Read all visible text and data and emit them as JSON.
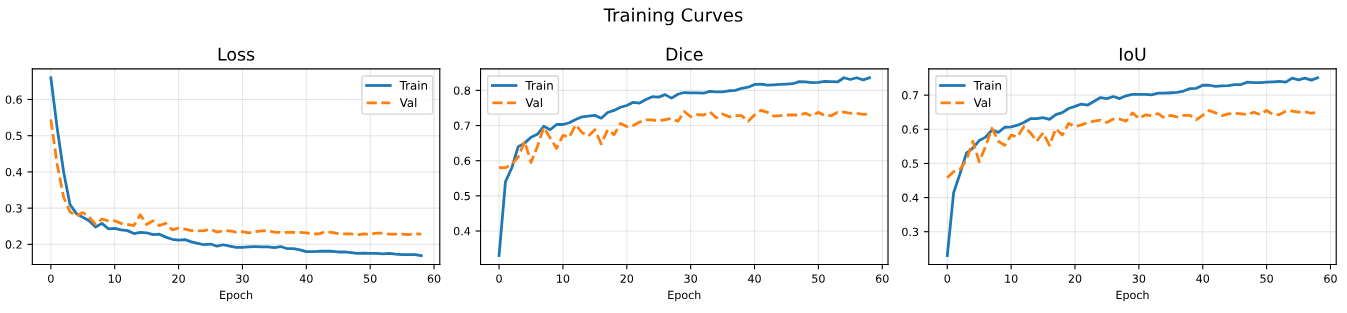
{
  "chart_data": [
    {
      "type": "line",
      "title": "Loss",
      "xlabel": "Epoch",
      "legend": "top right",
      "grid": true,
      "annotations": [
        "Training Curves"
      ],
      "x": [
        0,
        1,
        2,
        3,
        4,
        5,
        6,
        7,
        8,
        9,
        10,
        11,
        12,
        13,
        14,
        15,
        16,
        17,
        18,
        19,
        20,
        21,
        22,
        23,
        24,
        25,
        26,
        27,
        28,
        29,
        30,
        31,
        32,
        33,
        34,
        35,
        36,
        37,
        38,
        39,
        40,
        41,
        42,
        43,
        44,
        45,
        46,
        47,
        48,
        49,
        50,
        51,
        52,
        53,
        54,
        55,
        56,
        57,
        58
      ],
      "xlim": [
        -2.9,
        60.9
      ],
      "xticks": [
        0,
        10,
        20,
        30,
        40,
        50,
        60
      ],
      "ylim": [
        0.1445,
        0.6845
      ],
      "yticks": [
        0.2,
        0.3,
        0.4,
        0.5,
        0.6
      ],
      "series": [
        {
          "name": "Train",
          "color": "#1f77b4",
          "line_style": "solid",
          "values": [
            0.66,
            0.52,
            0.4,
            0.31,
            0.285,
            0.275,
            0.265,
            0.248,
            0.258,
            0.243,
            0.244,
            0.24,
            0.238,
            0.23,
            0.233,
            0.232,
            0.227,
            0.228,
            0.22,
            0.214,
            0.212,
            0.213,
            0.207,
            0.203,
            0.199,
            0.201,
            0.195,
            0.199,
            0.195,
            0.192,
            0.192,
            0.193,
            0.194,
            0.193,
            0.193,
            0.191,
            0.194,
            0.188,
            0.188,
            0.185,
            0.18,
            0.18,
            0.181,
            0.181,
            0.181,
            0.179,
            0.179,
            0.177,
            0.175,
            0.176,
            0.175,
            0.175,
            0.174,
            0.175,
            0.173,
            0.172,
            0.172,
            0.172,
            0.169
          ]
        },
        {
          "name": "Val",
          "color": "#ff7f0e",
          "line_style": "dashed",
          "values": [
            0.545,
            0.42,
            0.33,
            0.29,
            0.278,
            0.288,
            0.275,
            0.255,
            0.27,
            0.265,
            0.265,
            0.258,
            0.255,
            0.252,
            0.282,
            0.255,
            0.265,
            0.252,
            0.258,
            0.24,
            0.245,
            0.242,
            0.238,
            0.237,
            0.238,
            0.242,
            0.234,
            0.237,
            0.237,
            0.234,
            0.235,
            0.232,
            0.235,
            0.237,
            0.238,
            0.234,
            0.233,
            0.233,
            0.233,
            0.233,
            0.232,
            0.229,
            0.229,
            0.235,
            0.233,
            0.23,
            0.229,
            0.229,
            0.226,
            0.229,
            0.228,
            0.231,
            0.231,
            0.228,
            0.228,
            0.228,
            0.227,
            0.229,
            0.228
          ]
        }
      ]
    },
    {
      "type": "line",
      "title": "Dice",
      "xlabel": "Epoch",
      "legend": "top left",
      "grid": true,
      "x": [
        0,
        1,
        2,
        3,
        4,
        5,
        6,
        7,
        8,
        9,
        10,
        11,
        12,
        13,
        14,
        15,
        16,
        17,
        18,
        19,
        20,
        21,
        22,
        23,
        24,
        25,
        26,
        27,
        28,
        29,
        30,
        31,
        32,
        33,
        34,
        35,
        36,
        37,
        38,
        39,
        40,
        41,
        42,
        43,
        44,
        45,
        46,
        47,
        48,
        49,
        50,
        51,
        52,
        53,
        54,
        55,
        56,
        57,
        58
      ],
      "xlim": [
        -2.9,
        60.9
      ],
      "xticks": [
        0,
        10,
        20,
        30,
        40,
        50,
        60
      ],
      "ylim": [
        0.3047,
        0.8613
      ],
      "yticks": [
        0.4,
        0.5,
        0.6,
        0.7,
        0.8
      ],
      "series": [
        {
          "name": "Train",
          "color": "#1f77b4",
          "line_style": "solid",
          "values": [
            0.33,
            0.54,
            0.58,
            0.64,
            0.65,
            0.667,
            0.675,
            0.698,
            0.688,
            0.703,
            0.703,
            0.708,
            0.717,
            0.725,
            0.727,
            0.729,
            0.721,
            0.737,
            0.743,
            0.752,
            0.757,
            0.766,
            0.764,
            0.774,
            0.782,
            0.781,
            0.788,
            0.778,
            0.789,
            0.794,
            0.793,
            0.793,
            0.792,
            0.797,
            0.796,
            0.796,
            0.799,
            0.8,
            0.806,
            0.809,
            0.817,
            0.818,
            0.815,
            0.816,
            0.817,
            0.818,
            0.819,
            0.825,
            0.824,
            0.822,
            0.823,
            0.826,
            0.825,
            0.824,
            0.836,
            0.831,
            0.836,
            0.83,
            0.836
          ]
        },
        {
          "name": "Val",
          "color": "#ff7f0e",
          "line_style": "dashed",
          "values": [
            0.58,
            0.58,
            0.59,
            0.61,
            0.655,
            0.595,
            0.64,
            0.695,
            0.665,
            0.635,
            0.672,
            0.667,
            0.702,
            0.68,
            0.67,
            0.688,
            0.648,
            0.688,
            0.674,
            0.706,
            0.697,
            0.7,
            0.71,
            0.716,
            0.716,
            0.713,
            0.717,
            0.72,
            0.712,
            0.74,
            0.725,
            0.731,
            0.73,
            0.739,
            0.722,
            0.733,
            0.725,
            0.728,
            0.728,
            0.712,
            0.73,
            0.743,
            0.738,
            0.727,
            0.728,
            0.73,
            0.73,
            0.73,
            0.735,
            0.727,
            0.738,
            0.728,
            0.728,
            0.738,
            0.738,
            0.735,
            0.735,
            0.732,
            0.733
          ]
        }
      ]
    },
    {
      "type": "line",
      "title": "IoU",
      "xlabel": "Epoch",
      "legend": "top left",
      "grid": true,
      "x": [
        0,
        1,
        2,
        3,
        4,
        5,
        6,
        7,
        8,
        9,
        10,
        11,
        12,
        13,
        14,
        15,
        16,
        17,
        18,
        19,
        20,
        21,
        22,
        23,
        24,
        25,
        26,
        27,
        28,
        29,
        30,
        31,
        32,
        33,
        34,
        35,
        36,
        37,
        38,
        39,
        40,
        41,
        42,
        43,
        44,
        45,
        46,
        47,
        48,
        49,
        50,
        51,
        52,
        53,
        54,
        55,
        56,
        57,
        58
      ],
      "xlim": [
        -2.9,
        60.9
      ],
      "xticks": [
        0,
        10,
        20,
        30,
        40,
        50,
        60
      ],
      "ylim": [
        0.204,
        0.777
      ],
      "yticks": [
        0.3,
        0.4,
        0.5,
        0.6,
        0.7
      ],
      "series": [
        {
          "name": "Train",
          "color": "#1f77b4",
          "line_style": "solid",
          "values": [
            0.23,
            0.415,
            0.47,
            0.53,
            0.545,
            0.567,
            0.577,
            0.598,
            0.591,
            0.606,
            0.607,
            0.612,
            0.62,
            0.631,
            0.631,
            0.634,
            0.629,
            0.643,
            0.649,
            0.661,
            0.667,
            0.674,
            0.671,
            0.682,
            0.693,
            0.69,
            0.696,
            0.69,
            0.698,
            0.702,
            0.702,
            0.702,
            0.701,
            0.706,
            0.706,
            0.707,
            0.708,
            0.712,
            0.719,
            0.72,
            0.729,
            0.729,
            0.726,
            0.727,
            0.728,
            0.731,
            0.731,
            0.738,
            0.737,
            0.737,
            0.738,
            0.739,
            0.74,
            0.738,
            0.75,
            0.745,
            0.75,
            0.744,
            0.751
          ]
        },
        {
          "name": "Val",
          "color": "#ff7f0e",
          "line_style": "dashed",
          "values": [
            0.458,
            0.476,
            0.483,
            0.51,
            0.565,
            0.505,
            0.55,
            0.603,
            0.565,
            0.553,
            0.583,
            0.578,
            0.608,
            0.59,
            0.565,
            0.59,
            0.553,
            0.602,
            0.583,
            0.617,
            0.608,
            0.613,
            0.62,
            0.624,
            0.627,
            0.62,
            0.63,
            0.63,
            0.624,
            0.648,
            0.632,
            0.642,
            0.64,
            0.646,
            0.633,
            0.641,
            0.636,
            0.641,
            0.641,
            0.628,
            0.641,
            0.655,
            0.648,
            0.64,
            0.645,
            0.647,
            0.645,
            0.643,
            0.65,
            0.643,
            0.655,
            0.643,
            0.643,
            0.653,
            0.653,
            0.65,
            0.651,
            0.647,
            0.65
          ]
        }
      ]
    }
  ]
}
